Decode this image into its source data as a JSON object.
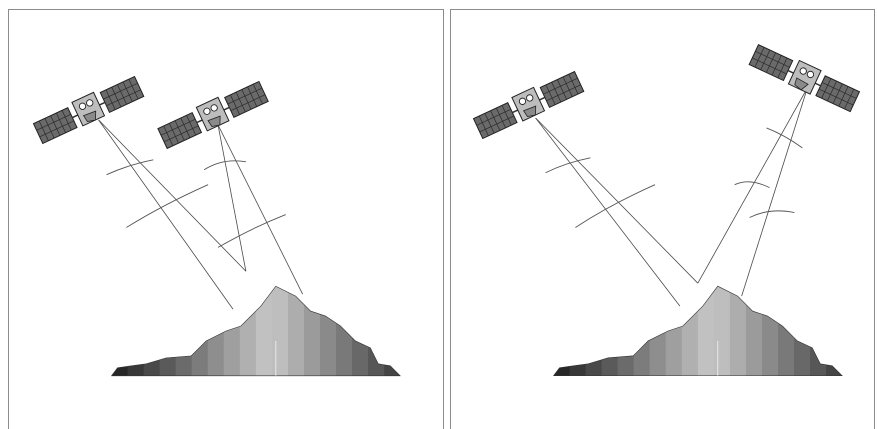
{
  "figure": {
    "panels": [
      {
        "id": "left",
        "description_id": "converging-geometry",
        "satellites": 2,
        "mountain_bands": 18
      },
      {
        "id": "right",
        "description_id": "diverging-geometry",
        "satellites": 2,
        "mountain_bands": 18
      }
    ],
    "colors": {
      "frame": "#8c8c8c",
      "ray": "#4a4a4a",
      "wave": "#555555",
      "panel_solar": "#6a6a6a",
      "satellite_body": "#bdbdbd"
    },
    "icons": [
      "satellite-icon",
      "mountain-icon"
    ]
  }
}
